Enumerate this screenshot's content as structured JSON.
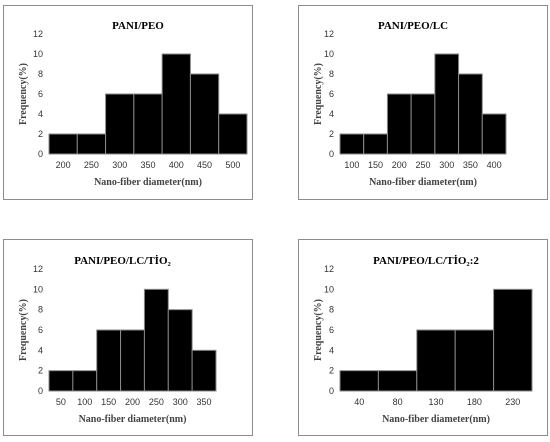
{
  "chart_data": [
    {
      "type": "bar",
      "title": "PANI/PEO",
      "xlabel": "Nano-fiber diameter(nm)",
      "ylabel": "Frequency(%)",
      "ylim": [
        0,
        12
      ],
      "yticks": [
        0,
        2,
        4,
        6,
        8,
        10,
        12
      ],
      "categories": [
        "200",
        "250",
        "300",
        "350",
        "400",
        "450",
        "500"
      ],
      "values": [
        2,
        2,
        6,
        6,
        10,
        8,
        4
      ]
    },
    {
      "type": "bar",
      "title": "PANI/PEO/LC",
      "xlabel": "Nano-fiber diameter(nm)",
      "ylabel": "Frequency(%)",
      "ylim": [
        0,
        12
      ],
      "yticks": [
        0,
        2,
        4,
        6,
        8,
        10,
        12
      ],
      "categories": [
        "100",
        "150",
        "200",
        "250",
        "300",
        "350",
        "400"
      ],
      "values": [
        2,
        2,
        6,
        6,
        10,
        8,
        4
      ]
    },
    {
      "type": "bar",
      "title": "PANI/PEO/LC/TİO₂",
      "xlabel": "Nano-fiber diameter(nm)",
      "ylabel": "Frequency(%)",
      "ylim": [
        0,
        12
      ],
      "yticks": [
        0,
        2,
        4,
        6,
        8,
        10,
        12
      ],
      "categories": [
        "50",
        "100",
        "150",
        "200",
        "250",
        "300",
        "350"
      ],
      "values": [
        2,
        2,
        6,
        6,
        10,
        8,
        4
      ]
    },
    {
      "type": "bar",
      "title": "PANI/PEO/LC/TİO₂:2",
      "xlabel": "Nano-fiber diameter(nm)",
      "ylabel": "Frequency(%)",
      "ylim": [
        0,
        12
      ],
      "yticks": [
        0,
        2,
        4,
        6,
        8,
        10,
        12
      ],
      "categories": [
        "40",
        "80",
        "130",
        "180",
        "230"
      ],
      "values": [
        2,
        2,
        6,
        6,
        10
      ]
    }
  ]
}
